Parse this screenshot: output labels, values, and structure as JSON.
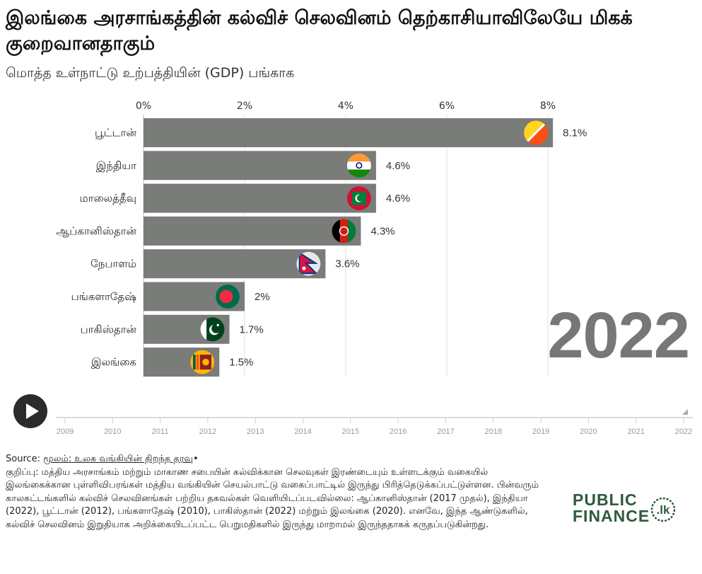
{
  "header": {
    "title": "இலங்கை அரசாங்கத்தின் கல்விச் செலவினம் தெற்காசியாவிலேயே மிகக் குறைவானதாகும்",
    "subtitle": "மொத்த உள்நாட்டு உற்பத்தியின் (GDP) பங்காக"
  },
  "chart_data": {
    "type": "bar",
    "orientation": "horizontal",
    "title": "இலங்கை அரசாங்கத்தின் கல்விச் செலவினம் தெற்காசியாவிலேயே மிகக் குறைவானதாகும்",
    "subtitle": "மொத்த உள்நாட்டு உற்பத்தியின் (GDP) பங்காக",
    "categories": [
      "பூட்டான்",
      "இந்தியா",
      "மாலைத்தீவு",
      "ஆப்கானிஸ்தான்",
      "நேபாளம்",
      "பங்களாதேஷ்",
      "பாகிஸ்தான்",
      "இலங்கை"
    ],
    "values": [
      8.1,
      4.6,
      4.6,
      4.3,
      3.6,
      2.0,
      1.7,
      1.5
    ],
    "value_labels": [
      "8.1%",
      "4.6%",
      "4.6%",
      "4.3%",
      "3.6%",
      "2%",
      "1.7%",
      "1.5%"
    ],
    "xlim": [
      0,
      8
    ],
    "x_ticks": [
      0,
      2,
      4,
      6,
      8
    ],
    "x_tick_labels": [
      "0%",
      "2%",
      "4%",
      "6%",
      "8%"
    ],
    "grid": true,
    "bar_color": "#7a7c79",
    "flags": [
      "bhutan-flag-icon",
      "india-flag-icon",
      "maldives-flag-icon",
      "afghanistan-flag-icon",
      "nepal-flag-icon",
      "bangladesh-flag-icon",
      "pakistan-flag-icon",
      "sri-lanka-flag-icon"
    ],
    "year": "2022"
  },
  "timeline": {
    "years": [
      "2009",
      "2010",
      "2011",
      "2012",
      "2013",
      "2014",
      "2015",
      "2016",
      "2017",
      "2018",
      "2019",
      "2020",
      "2021",
      "2022"
    ],
    "current": "2022",
    "play_label": "play"
  },
  "footer": {
    "source_prefix": "Source:",
    "source_link": "மூலம்: உலக வங்கியின் திறந்த தரவு",
    "source_suffix": "•",
    "note": "குறிப்பு: மத்திய அரசாங்கம் மற்றும் மாகாண சபையின் கல்விக்கான செலவுகள் இரண்டையும் உள்ளடக்கும் வகையில் இலங்கைக்கான புள்ளிவிபரங்கள் மத்திய வங்கியின் செயல்பாட்டு வகைப்பாட்டில் இருந்து பிரித்தெடுக்கப்பட்டுள்ளன. பின்வரும் காலகட்டங்களில் கல்விச் செலவினங்கள் பற்றிய தகவல்கள் வெளியிடப்படவில்லை: ஆப்கானிஸ்தான் (2017 முதல்), இந்தியா (2022), பூட்டான் (2012), பங்களாதேஷ் (2010), பாகிஸ்தான் (2022) மற்றும் இலங்கை (2020). எனவே, இந்த ஆண்டுகளில், கல்விச் செலவினம் இறுதியாக அறிக்கையிடப்பட்ட பெறுமதிகளில் இருந்து மாறாமல் இருந்ததாகக் கருதப்படுகின்றது."
  },
  "logo": {
    "line1": "PUBLIC",
    "line2": "FINANCE",
    "badge": ".lk",
    "color": "#2f5a3c"
  }
}
